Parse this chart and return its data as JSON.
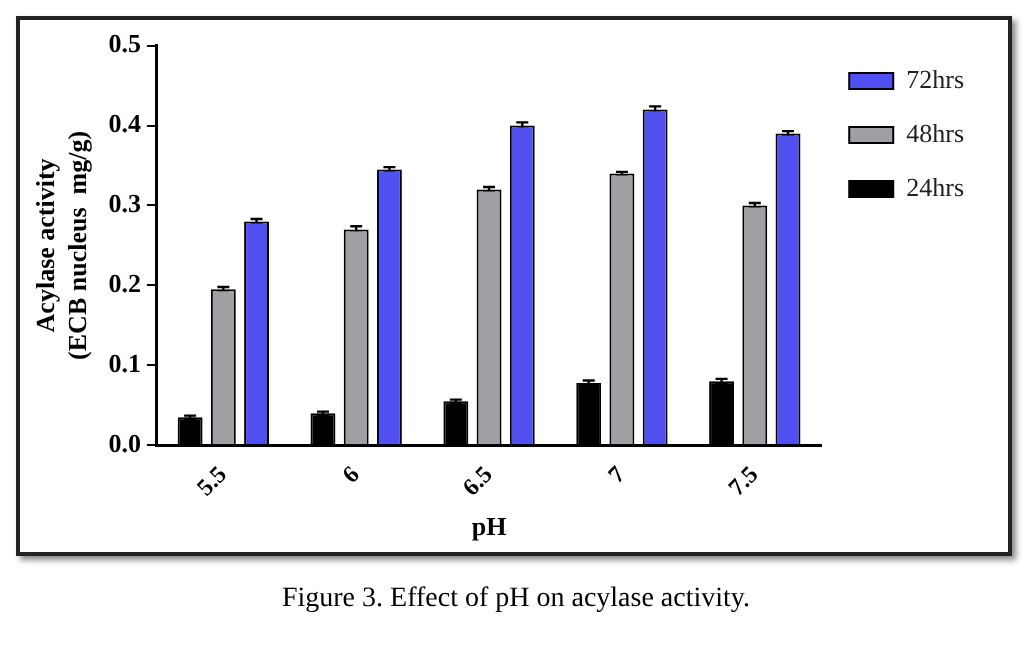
{
  "chart_data": {
    "type": "bar",
    "xlabel": "pH",
    "ylabel": "Acylase activity\n(ECB nucleus  mg/g)",
    "annotations": [
      "Figure 3. Effect of pH on acylase activity."
    ],
    "categories": [
      "5.5",
      "6",
      "6.5",
      "7",
      "7.5"
    ],
    "series": [
      {
        "name": "24hrs",
        "color": "#000000",
        "values": [
          0.035,
          0.04,
          0.055,
          0.078,
          0.08
        ],
        "errors": [
          0.002,
          0.002,
          0.002,
          0.003,
          0.003
        ]
      },
      {
        "name": "48hrs",
        "color": "#a0a0a4",
        "values": [
          0.195,
          0.27,
          0.32,
          0.34,
          0.3
        ],
        "errors": [
          0.003,
          0.004,
          0.003,
          0.002,
          0.003
        ]
      },
      {
        "name": "72hrs",
        "color": "#5050f0",
        "values": [
          0.28,
          0.345,
          0.4,
          0.42,
          0.39
        ],
        "errors": [
          0.003,
          0.003,
          0.004,
          0.004,
          0.003
        ]
      }
    ],
    "ylim": [
      0,
      0.5
    ],
    "yticks": [
      {
        "value": 0,
        "label": "0.0"
      },
      0.1,
      0.2,
      0.3,
      0.4,
      0.5
    ],
    "grid": false,
    "legend": "top right"
  }
}
